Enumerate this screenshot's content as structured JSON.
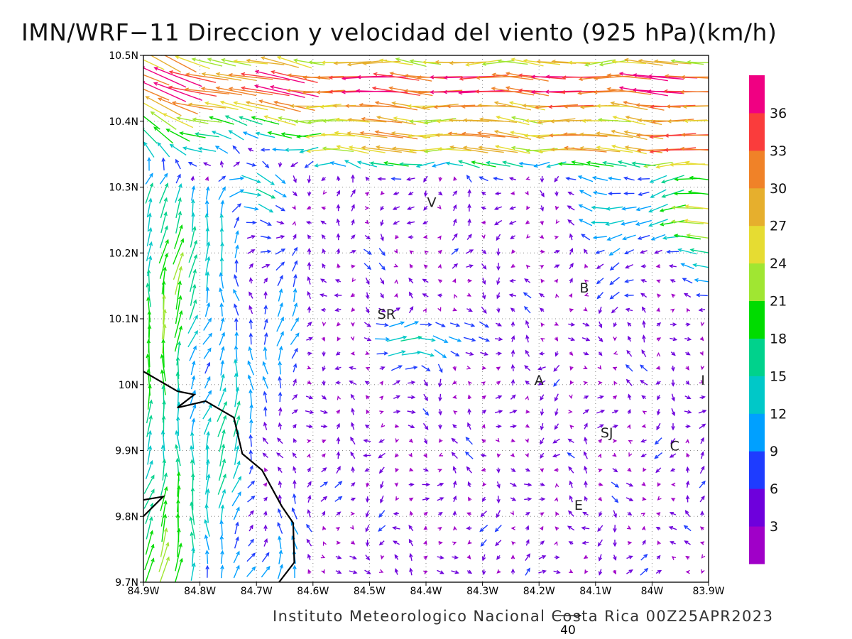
{
  "title": "IMN/WRF−11 Direccion y velocidad del viento (925 hPa)(km/h)",
  "footer": "Instituto Meteorologico Nacional Costa Rica 00Z25APR2023",
  "reference_vector": {
    "value": "40",
    "units": "km/h"
  },
  "map": {
    "lon_range": [
      -84.9,
      -83.9
    ],
    "lat_range": [
      9.7,
      10.5
    ],
    "grid": "dotted",
    "x_tick_labels": [
      "84.9W",
      "84.8W",
      "84.7W",
      "84.6W",
      "84.5W",
      "84.4W",
      "84.3W",
      "84.2W",
      "84.1W",
      "84W",
      "83.9W"
    ],
    "y_tick_labels": [
      "9.7N",
      "9.8N",
      "9.9N",
      "10N",
      "10.1N",
      "10.2N",
      "10.3N",
      "10.4N",
      "10.5N"
    ],
    "place_labels": [
      {
        "text": "V",
        "lon": -84.39,
        "lat": 10.27
      },
      {
        "text": "SR",
        "lon": -84.47,
        "lat": 10.1
      },
      {
        "text": "B",
        "lon": -84.12,
        "lat": 10.14
      },
      {
        "text": "A",
        "lon": -84.2,
        "lat": 10.0
      },
      {
        "text": "I",
        "lon": -83.91,
        "lat": 10.0
      },
      {
        "text": "SJ",
        "lon": -84.08,
        "lat": 9.92
      },
      {
        "text": "C",
        "lon": -83.96,
        "lat": 9.9
      },
      {
        "text": "E",
        "lon": -84.13,
        "lat": 9.81
      }
    ],
    "coastline": [
      [
        -84.9,
        10.02
      ],
      [
        -84.84,
        9.99
      ],
      [
        -84.81,
        9.985
      ],
      [
        -84.84,
        9.965
      ],
      [
        -84.79,
        9.975
      ],
      [
        -84.74,
        9.95
      ],
      [
        -84.725,
        9.895
      ],
      [
        -84.69,
        9.87
      ],
      [
        -84.655,
        9.815
      ],
      [
        -84.635,
        9.79
      ],
      [
        -84.633,
        9.73
      ],
      [
        -84.66,
        9.7
      ]
    ],
    "coastline_fragment": [
      [
        -84.9,
        9.8
      ],
      [
        -84.865,
        9.83
      ],
      [
        -84.9,
        9.825
      ]
    ]
  },
  "colorbar": {
    "colors": [
      "#a000c8",
      "#6e00dc",
      "#1e3cff",
      "#00a0ff",
      "#00c8c8",
      "#00d28c",
      "#00dc00",
      "#a0e632",
      "#e6dc32",
      "#e6af2d",
      "#f08228",
      "#fa3c3c",
      "#f00082"
    ],
    "labels": [
      "3",
      "6",
      "9",
      "12",
      "15",
      "18",
      "21",
      "24",
      "27",
      "30",
      "33",
      "36"
    ]
  },
  "wind_field_description": "Northeast trade flow strongest (27-36 km/h) along the northern edge, turning to south-southwest flow (15-24 km/h) over the Pacific coast in the west, with weak variable winds (3-12 km/h) over the central valley."
}
